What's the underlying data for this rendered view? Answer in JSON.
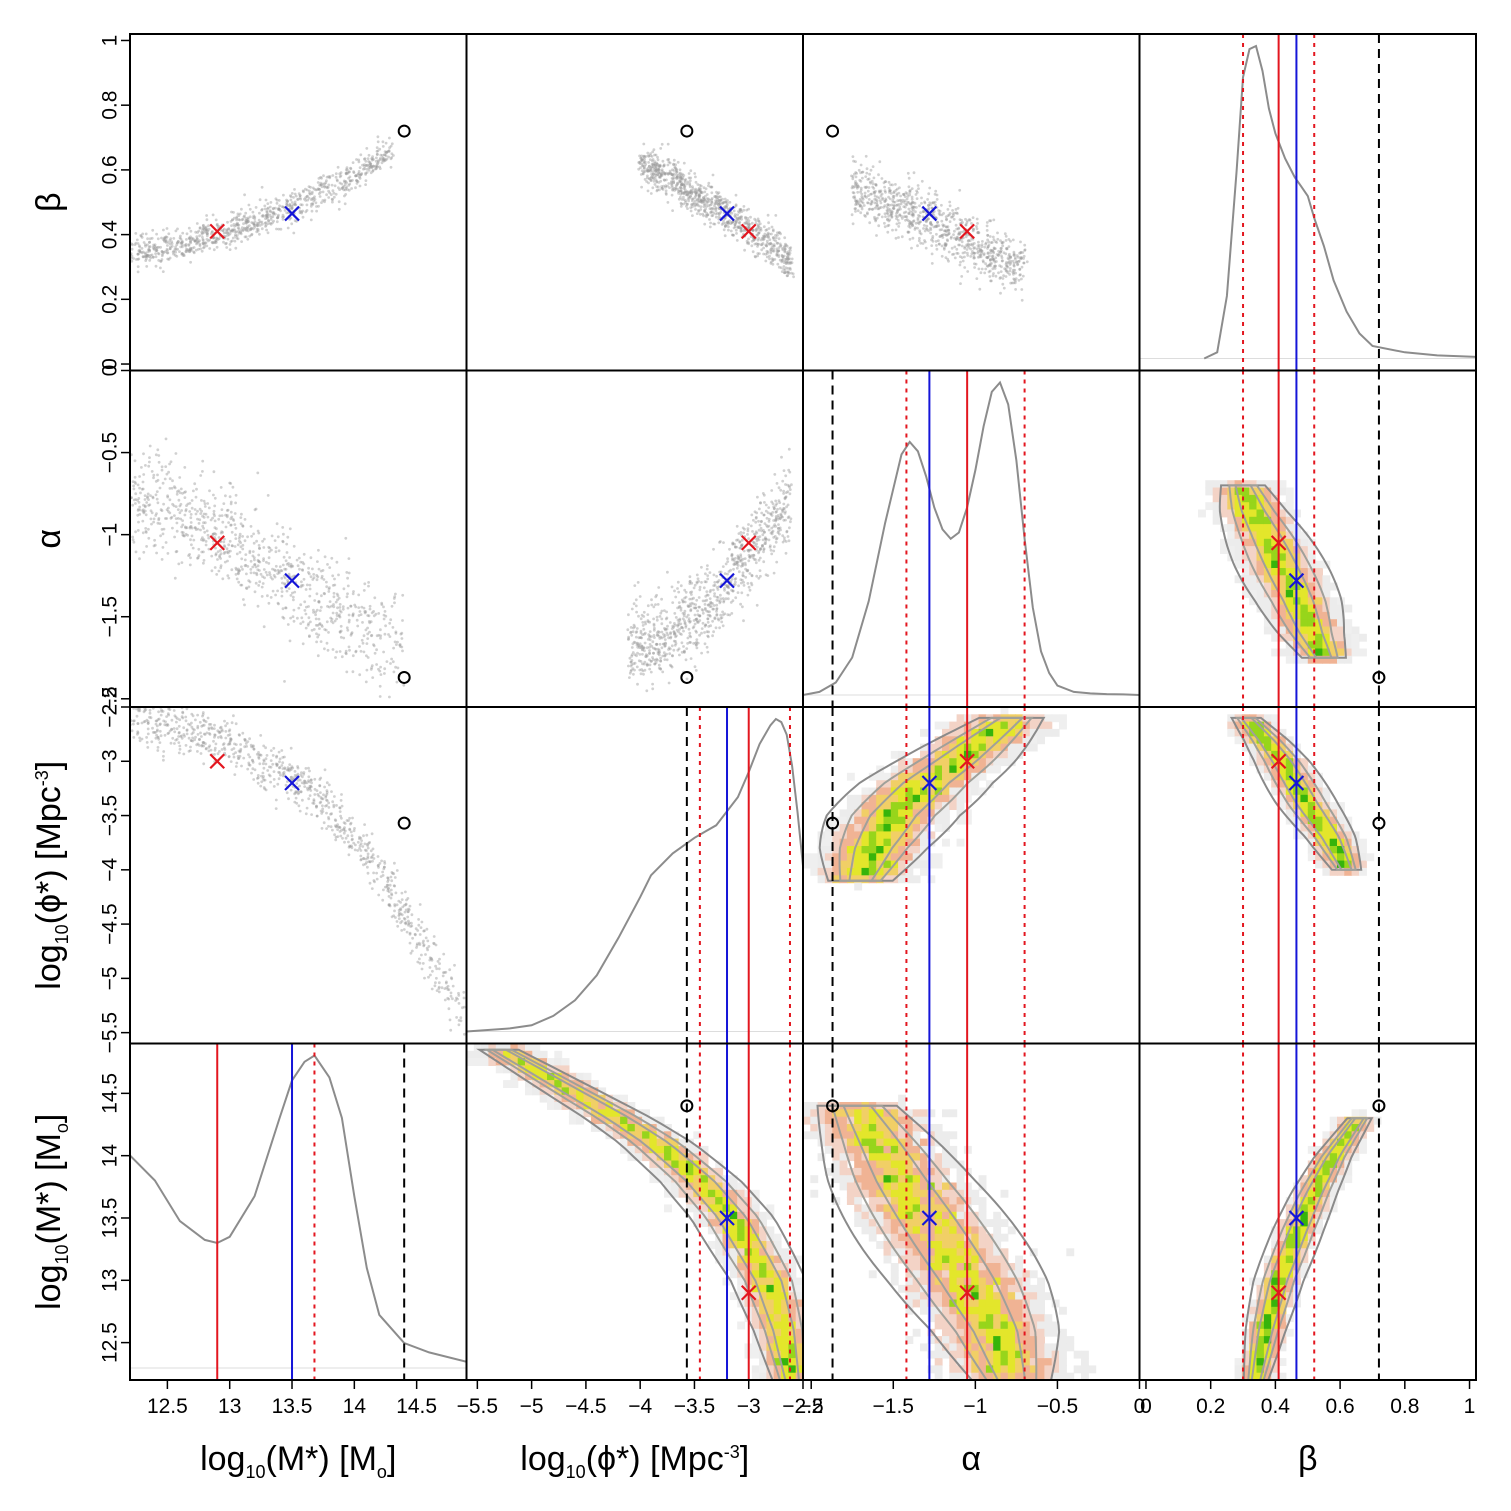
{
  "chart_data": {
    "type": "scatter",
    "title": "",
    "figure_kind": "corner plot (posterior of mass-function parameters)",
    "parameters": [
      {
        "key": "logM",
        "label": "log",
        "sub": "10",
        "label_rest": "(M*) [M",
        "sub2": "o",
        "tail": "]",
        "range": [
          12.2,
          14.9
        ],
        "ticks": [
          12.5,
          13,
          13.5,
          14,
          14.5
        ],
        "tick_labels": [
          "12.5",
          "13",
          "13.5",
          "14",
          "14.5"
        ],
        "red_x": 12.9,
        "blue_x": 13.5,
        "circle": 14.4,
        "quantiles": [
          13.68
        ]
      },
      {
        "key": "logphi",
        "label": "log",
        "sub": "10",
        "label_rest": "(ϕ*) [Mpc",
        "sup": "-3",
        "tail": "]",
        "range": [
          -5.6,
          -2.5
        ],
        "ticks": [
          -5.5,
          -5,
          -4.5,
          -4,
          -3.5,
          -3,
          -2.5
        ],
        "tick_labels": [
          "−5.5",
          "−5",
          "−4.5",
          "−4",
          "−3.5",
          "−3",
          "−2.5"
        ],
        "red_x": -3.0,
        "blue_x": -3.2,
        "circle": -3.57,
        "quantiles": [
          -3.45,
          -2.62
        ]
      },
      {
        "key": "alpha",
        "label": "α",
        "range": [
          -2.05,
          0.0
        ],
        "ticks": [
          -2,
          -1.5,
          -1,
          -0.5,
          0
        ],
        "tick_labels": [
          "−2",
          "−1.5",
          "−1",
          "−0.5",
          "0"
        ],
        "red_x": -1.05,
        "blue_x": -1.28,
        "circle": -1.87,
        "quantiles": [
          -1.42,
          -0.7
        ]
      },
      {
        "key": "beta",
        "label": "β",
        "range": [
          -0.02,
          1.02
        ],
        "ticks": [
          0,
          0.2,
          0.4,
          0.6,
          0.8,
          1
        ],
        "tick_labels": [
          "0",
          "0.2",
          "0.4",
          "0.6",
          "0.8",
          "1"
        ],
        "red_x": 0.41,
        "blue_x": 0.465,
        "circle": 0.72,
        "quantiles": [
          0.3,
          0.52
        ]
      }
    ],
    "marginals": {
      "logM": {
        "x": [
          12.2,
          12.4,
          12.6,
          12.8,
          12.9,
          13.0,
          13.2,
          13.4,
          13.5,
          13.6,
          13.68,
          13.8,
          13.9,
          14.0,
          14.1,
          14.2,
          14.4,
          14.6,
          14.9
        ],
        "y": [
          0.68,
          0.6,
          0.47,
          0.41,
          0.4,
          0.42,
          0.55,
          0.8,
          0.92,
          0.98,
          1.0,
          0.93,
          0.8,
          0.55,
          0.32,
          0.17,
          0.08,
          0.05,
          0.02
        ]
      },
      "logphi": {
        "x": [
          -5.6,
          -5.2,
          -5.0,
          -4.8,
          -4.6,
          -4.4,
          -4.2,
          -4.0,
          -3.9,
          -3.7,
          -3.5,
          -3.4,
          -3.3,
          -3.1,
          -3.0,
          -2.9,
          -2.8,
          -2.75,
          -2.7,
          -2.65,
          -2.6,
          -2.55,
          -2.5
        ],
        "y": [
          0.0,
          0.01,
          0.02,
          0.05,
          0.1,
          0.18,
          0.3,
          0.43,
          0.5,
          0.57,
          0.62,
          0.64,
          0.66,
          0.75,
          0.83,
          0.92,
          0.98,
          1.0,
          0.99,
          0.95,
          0.85,
          0.7,
          0.53
        ]
      },
      "alpha": {
        "x": [
          -2.05,
          -1.95,
          -1.85,
          -1.75,
          -1.65,
          -1.55,
          -1.45,
          -1.4,
          -1.35,
          -1.3,
          -1.25,
          -1.2,
          -1.15,
          -1.1,
          -1.05,
          -1.0,
          -0.95,
          -0.9,
          -0.85,
          -0.8,
          -0.75,
          -0.7,
          -0.65,
          -0.6,
          -0.55,
          -0.5,
          -0.4,
          -0.3,
          -0.2,
          -0.1,
          0.0
        ],
        "y": [
          0.0,
          0.01,
          0.04,
          0.12,
          0.3,
          0.55,
          0.77,
          0.81,
          0.78,
          0.7,
          0.6,
          0.53,
          0.5,
          0.52,
          0.6,
          0.72,
          0.86,
          0.97,
          1.0,
          0.93,
          0.75,
          0.5,
          0.28,
          0.14,
          0.07,
          0.03,
          0.01,
          0.005,
          0.003,
          0.002,
          0.0
        ]
      },
      "beta": {
        "x": [
          0.18,
          0.22,
          0.25,
          0.28,
          0.3,
          0.32,
          0.34,
          0.36,
          0.38,
          0.4,
          0.43,
          0.46,
          0.48,
          0.5,
          0.52,
          0.55,
          0.58,
          0.62,
          0.66,
          0.7,
          0.8,
          0.9,
          1.02
        ],
        "y": [
          0.0,
          0.02,
          0.2,
          0.6,
          0.9,
          0.99,
          1.0,
          0.92,
          0.8,
          0.72,
          0.64,
          0.58,
          0.55,
          0.52,
          0.45,
          0.36,
          0.25,
          0.15,
          0.08,
          0.04,
          0.02,
          0.01,
          0.005
        ]
      }
    },
    "ridges": {
      "phi_vs_M": {
        "x": [
          12.2,
          12.6,
          13.0,
          13.5,
          13.8,
          14.1,
          14.3,
          14.5,
          14.7,
          14.85
        ],
        "y": [
          -2.6,
          -2.68,
          -2.82,
          -3.15,
          -3.45,
          -3.85,
          -4.2,
          -4.6,
          -5.0,
          -5.3
        ],
        "width": 0.12
      },
      "alpha_vs_M": {
        "x": [
          12.2,
          12.6,
          13.0,
          13.5,
          13.8,
          14.1,
          14.4
        ],
        "y": [
          -0.78,
          -0.88,
          -1.05,
          -1.3,
          -1.45,
          -1.58,
          -1.72
        ],
        "width": 0.16
      },
      "beta_vs_M": {
        "x": [
          12.2,
          12.6,
          13.0,
          13.4,
          13.7,
          14.0,
          14.3
        ],
        "y": [
          0.34,
          0.37,
          0.41,
          0.47,
          0.52,
          0.58,
          0.66
        ],
        "width": 0.025
      },
      "alpha_vs_phi": {
        "x": [
          -4.1,
          -3.8,
          -3.5,
          -3.2,
          -3.0,
          -2.8,
          -2.6
        ],
        "y": [
          -1.7,
          -1.62,
          -1.5,
          -1.3,
          -1.12,
          -0.95,
          -0.78
        ],
        "width": 0.13
      },
      "beta_vs_phi": {
        "x": [
          -4.0,
          -3.7,
          -3.4,
          -3.2,
          -3.0,
          -2.8,
          -2.6
        ],
        "y": [
          0.62,
          0.57,
          0.5,
          0.46,
          0.42,
          0.37,
          0.31
        ],
        "width": 0.03
      },
      "beta_vs_alpha": {
        "x": [
          -1.75,
          -1.6,
          -1.4,
          -1.2,
          -1.0,
          -0.85,
          -0.7
        ],
        "y": [
          0.55,
          0.51,
          0.47,
          0.42,
          0.37,
          0.33,
          0.3
        ],
        "width": 0.045
      }
    }
  }
}
